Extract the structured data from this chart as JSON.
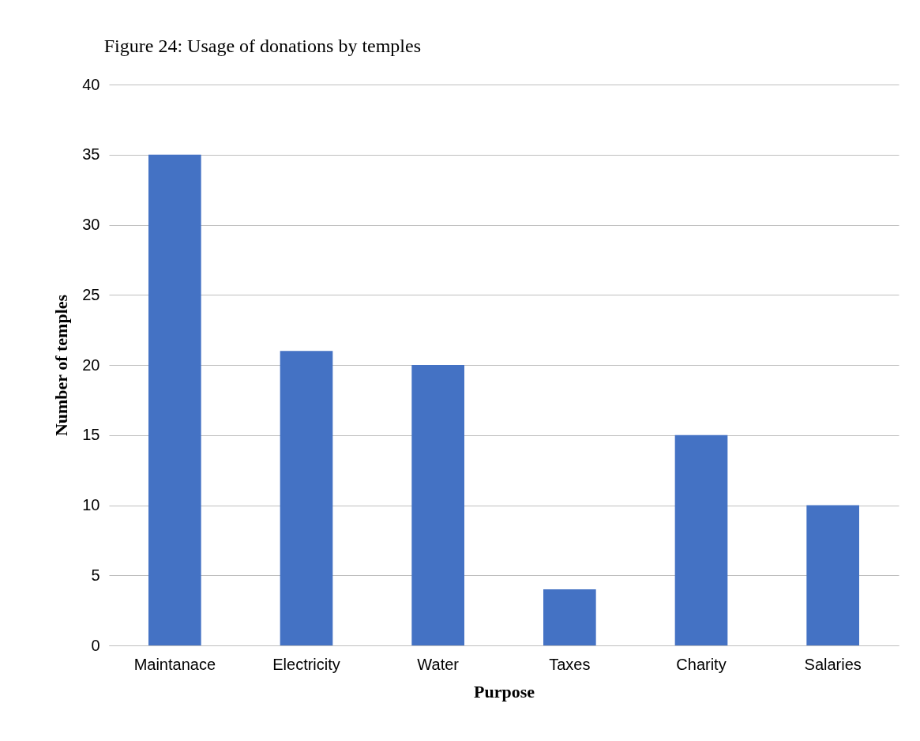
{
  "chart_data": {
    "type": "bar",
    "title": "Figure 24: Usage of donations by temples",
    "xlabel": "Purpose",
    "ylabel": "Number of temples",
    "categories": [
      "Maintanace",
      "Electricity",
      "Water",
      "Taxes",
      "Charity",
      "Salaries"
    ],
    "values": [
      35,
      21,
      20,
      4,
      15,
      10
    ],
    "color": "#4472c4",
    "ylim": [
      0,
      40
    ],
    "yticks": [
      0,
      5,
      10,
      15,
      20,
      25,
      30,
      35,
      40
    ],
    "grid": "y"
  }
}
